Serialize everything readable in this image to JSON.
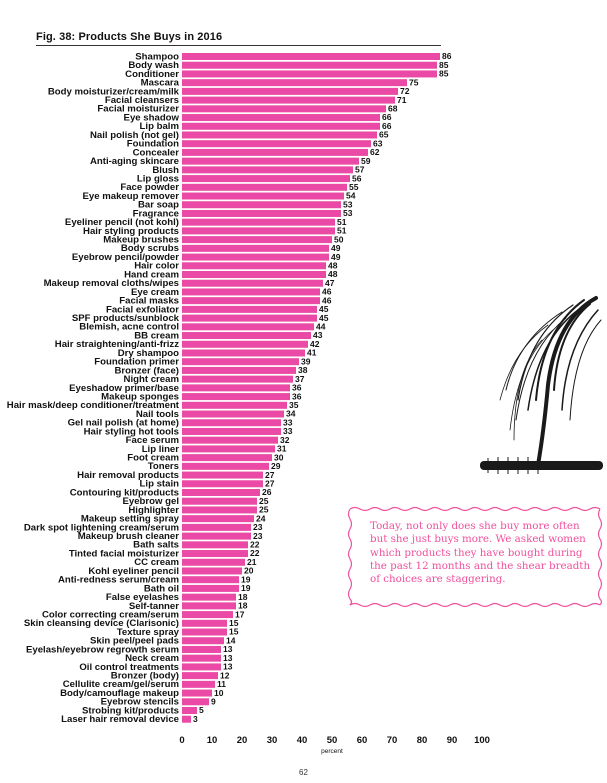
{
  "figure": {
    "title": "Fig. 38: Products She Buys in 2016",
    "page_number": "62"
  },
  "callout": {
    "text": "Today, not only does she buy more often but she just buys more. We asked women which products they have bought during the past 12 months and the shear breadth of choices are staggering."
  },
  "colors": {
    "bar": "#ea4aa5",
    "callout_border": "#ef4f9c",
    "callout_text": "#ef4f9c"
  },
  "chart_data": {
    "type": "bar",
    "orientation": "horizontal",
    "title": "Fig. 38: Products She Buys in 2016",
    "xlabel": "percent",
    "ylabel": "",
    "xlim": [
      0,
      100
    ],
    "xticks": [
      0,
      10,
      20,
      30,
      40,
      50,
      60,
      70,
      80,
      90,
      100
    ],
    "grid": false,
    "categories": [
      "Shampoo",
      "Body wash",
      "Conditioner",
      "Mascara",
      "Body moisturizer/cream/milk",
      "Facial cleansers",
      "Facial moisturizer",
      "Eye shadow",
      "Lip balm",
      "Nail polish (not gel)",
      "Foundation",
      "Concealer",
      "Anti-aging skincare",
      "Blush",
      "Lip gloss",
      "Face powder",
      "Eye makeup remover",
      "Bar soap",
      "Fragrance",
      "Eyeliner pencil (not kohl)",
      "Hair styling products",
      "Makeup brushes",
      "Body scrubs",
      "Eyebrow pencil/powder",
      "Hair color",
      "Hand cream",
      "Makeup removal cloths/wipes",
      "Eye cream",
      "Facial masks",
      "Facial exfoliator",
      "SPF products/sunblock",
      "Blemish, acne control",
      "BB cream",
      "Hair straightening/anti-frizz",
      "Dry shampoo",
      "Foundation primer",
      "Bronzer (face)",
      "Night cream",
      "Eyeshadow primer/base",
      "Makeup sponges",
      "Hair mask/deep conditioner/treatment",
      "Nail tools",
      "Gel nail polish (at home)",
      "Hair styling hot tools",
      "Face serum",
      "Lip liner",
      "Foot cream",
      "Toners",
      "Hair removal products",
      "Lip stain",
      "Contouring kit/products",
      "Eyebrow gel",
      "Highlighter",
      "Makeup setting spray",
      "Dark spot lightening cream/serum",
      "Makeup brush cleaner",
      "Bath salts",
      "Tinted facial moisturizer",
      "CC cream",
      "Kohl eyeliner pencil",
      "Anti-redness serum/cream",
      "Bath oil",
      "False eyelashes",
      "Self-tanner",
      "Color correcting cream/serum",
      "Skin cleansing device (Clarisonic)",
      "Texture spray",
      "Skin peel/peel pads",
      "Eyelash/eyebrow regrowth serum",
      "Neck cream",
      "Oil control treatments",
      "Bronzer (body)",
      "Cellulite cream/gel/serum",
      "Body/camouflage makeup",
      "Eyebrow stencils",
      "Strobing kit/products",
      "Laser hair removal device"
    ],
    "values": [
      86,
      85,
      85,
      75,
      72,
      71,
      68,
      66,
      66,
      65,
      63,
      62,
      59,
      57,
      56,
      55,
      54,
      53,
      53,
      51,
      51,
      50,
      49,
      49,
      48,
      48,
      47,
      46,
      46,
      45,
      45,
      44,
      43,
      42,
      41,
      39,
      38,
      37,
      36,
      36,
      35,
      34,
      33,
      33,
      32,
      31,
      30,
      29,
      27,
      27,
      26,
      25,
      25,
      24,
      23,
      23,
      22,
      22,
      21,
      20,
      19,
      19,
      18,
      18,
      17,
      15,
      15,
      14,
      13,
      13,
      13,
      12,
      11,
      10,
      9,
      5,
      3
    ]
  }
}
